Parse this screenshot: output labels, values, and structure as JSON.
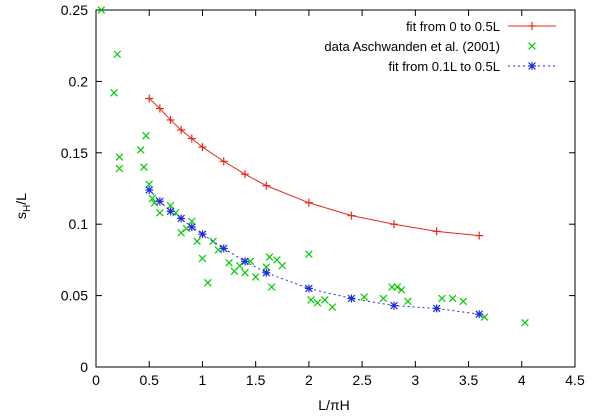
{
  "chart_data": {
    "type": "scatter",
    "xlabel": "L/πH",
    "ylabel_main": "s",
    "ylabel_sub": "H",
    "ylabel_tail": "/L",
    "xlim": [
      0,
      4.5
    ],
    "ylim": [
      0,
      0.25
    ],
    "xticks": [
      0,
      0.5,
      1,
      1.5,
      2,
      2.5,
      3,
      3.5,
      4,
      4.5
    ],
    "yticks": [
      0,
      0.05,
      0.1,
      0.15,
      0.2,
      0.25
    ],
    "xtick_labels": [
      "0",
      "0.5",
      "1",
      "1.5",
      "2",
      "2.5",
      "3",
      "3.5",
      "4",
      "4.5"
    ],
    "ytick_labels": [
      "0",
      "0.05",
      "0.1",
      "0.15",
      "0.2",
      "0.25"
    ],
    "grid": false,
    "legend_position": "top-right",
    "series": [
      {
        "name": "fit from 0 to 0.5L",
        "color": "#e8271c",
        "marker": "plus",
        "line": "solid",
        "x": [
          0.5,
          0.6,
          0.7,
          0.8,
          0.9,
          1.0,
          1.2,
          1.4,
          1.6,
          2.0,
          2.4,
          2.8,
          3.2,
          3.6
        ],
        "y": [
          0.188,
          0.181,
          0.173,
          0.166,
          0.16,
          0.154,
          0.144,
          0.135,
          0.127,
          0.115,
          0.106,
          0.1,
          0.095,
          0.092
        ]
      },
      {
        "name": "data Aschwanden et al. (2001)",
        "color": "#00cc00",
        "marker": "cross",
        "line": "none",
        "x": [
          0.05,
          0.2,
          0.17,
          0.22,
          0.22,
          0.42,
          0.47,
          0.45,
          0.5,
          0.53,
          0.55,
          0.6,
          0.7,
          0.75,
          0.8,
          0.85,
          0.9,
          0.95,
          1.0,
          1.05,
          1.1,
          1.15,
          1.25,
          1.3,
          1.35,
          1.4,
          1.45,
          1.5,
          1.6,
          1.63,
          1.65,
          1.7,
          1.75,
          2.0,
          2.02,
          2.08,
          2.15,
          2.22,
          2.52,
          2.7,
          2.78,
          2.83,
          2.87,
          2.93,
          3.25,
          3.35,
          3.45,
          3.65,
          4.03
        ],
        "y": [
          0.25,
          0.219,
          0.192,
          0.147,
          0.139,
          0.152,
          0.162,
          0.14,
          0.128,
          0.118,
          0.115,
          0.108,
          0.113,
          0.108,
          0.094,
          0.097,
          0.102,
          0.088,
          0.076,
          0.059,
          0.088,
          0.082,
          0.073,
          0.067,
          0.071,
          0.066,
          0.074,
          0.063,
          0.07,
          0.077,
          0.056,
          0.075,
          0.071,
          0.079,
          0.047,
          0.045,
          0.047,
          0.042,
          0.049,
          0.048,
          0.056,
          0.056,
          0.054,
          0.046,
          0.048,
          0.048,
          0.046,
          0.035,
          0.031
        ]
      },
      {
        "name": "fit from 0.1L to 0.5L",
        "color": "#1b2ddc",
        "marker": "star",
        "line": "dotted",
        "x": [
          0.5,
          0.6,
          0.7,
          0.8,
          0.9,
          1.0,
          1.2,
          1.4,
          1.6,
          2.0,
          2.4,
          2.8,
          3.2,
          3.6
        ],
        "y": [
          0.124,
          0.116,
          0.109,
          0.104,
          0.098,
          0.093,
          0.083,
          0.074,
          0.066,
          0.055,
          0.048,
          0.043,
          0.041,
          0.037
        ]
      }
    ]
  }
}
